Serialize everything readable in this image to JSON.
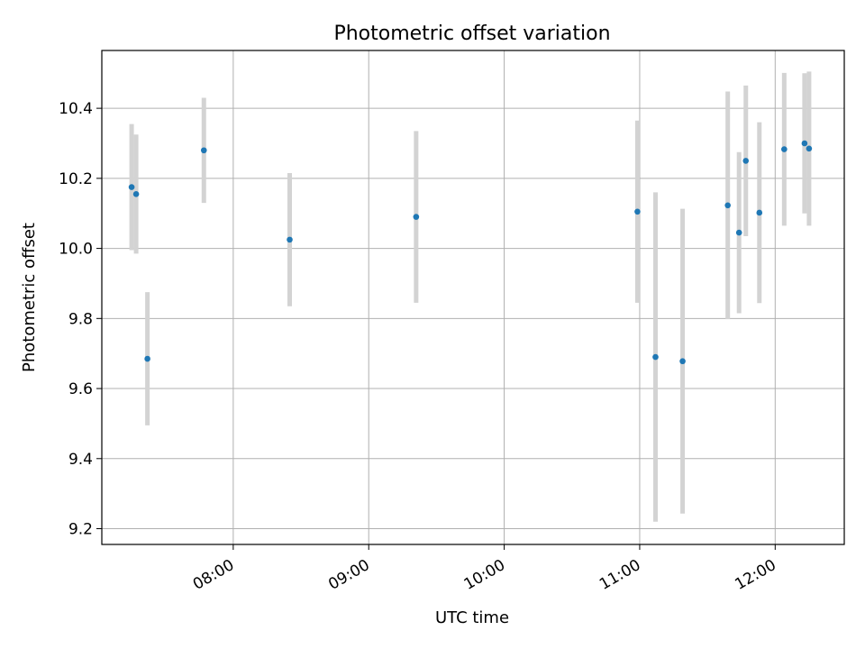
{
  "chart_data": {
    "type": "scatter",
    "title": "Photometric offset variation",
    "xlabel": "UTC time",
    "ylabel": "Photometric offset",
    "x_unit": "hours UTC",
    "xlim_hours": [
      7.03,
      12.51
    ],
    "ylim": [
      9.155,
      10.565
    ],
    "grid": true,
    "x_ticks": [
      {
        "hour": 8,
        "label": "08:00"
      },
      {
        "hour": 9,
        "label": "09:00"
      },
      {
        "hour": 10,
        "label": "10:00"
      },
      {
        "hour": 11,
        "label": "11:00"
      },
      {
        "hour": 12,
        "label": "12:00"
      }
    ],
    "y_ticks": [
      {
        "value": 9.2,
        "label": "9.2"
      },
      {
        "value": 9.4,
        "label": "9.4"
      },
      {
        "value": 9.6,
        "label": "9.6"
      },
      {
        "value": 9.8,
        "label": "9.8"
      },
      {
        "value": 10.0,
        "label": "10.0"
      },
      {
        "value": 10.2,
        "label": "10.2"
      },
      {
        "value": 10.4,
        "label": "10.4"
      }
    ],
    "colors": {
      "points": "#1f77b4",
      "errorbars": "#d3d3d3",
      "grid": "#b0b0b0"
    },
    "points": [
      {
        "time": "07:15",
        "y": 10.175,
        "yerr": 0.18
      },
      {
        "time": "07:17",
        "y": 10.155,
        "yerr": 0.17
      },
      {
        "time": "07:22",
        "y": 9.685,
        "yerr": 0.19
      },
      {
        "time": "07:47",
        "y": 10.28,
        "yerr": 0.15
      },
      {
        "time": "08:25",
        "y": 10.025,
        "yerr": 0.19
      },
      {
        "time": "09:21",
        "y": 10.09,
        "yerr": 0.245
      },
      {
        "time": "10:59",
        "y": 10.105,
        "yerr": 0.26
      },
      {
        "time": "11:07",
        "y": 9.69,
        "yerr": 0.47
      },
      {
        "time": "11:19",
        "y": 9.678,
        "yerr": 0.435
      },
      {
        "time": "11:39",
        "y": 10.123,
        "yerr": 0.325
      },
      {
        "time": "11:44",
        "y": 10.045,
        "yerr": 0.23
      },
      {
        "time": "11:47",
        "y": 10.25,
        "yerr": 0.215
      },
      {
        "time": "11:53",
        "y": 10.102,
        "yerr": 0.258
      },
      {
        "time": "12:04",
        "y": 10.283,
        "yerr": 0.218
      },
      {
        "time": "12:13",
        "y": 10.3,
        "yerr": 0.2
      },
      {
        "time": "12:15",
        "y": 10.285,
        "yerr": 0.22
      }
    ]
  }
}
